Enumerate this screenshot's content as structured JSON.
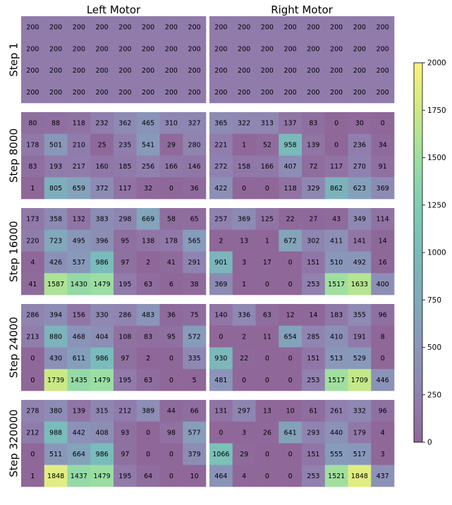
{
  "chart_data": {
    "type": "heatmap",
    "columns": [
      "Left Motor",
      "Right Motor"
    ],
    "rows": [
      "Step 1",
      "Step 8000",
      "Step 16000",
      "Step 24000",
      "Step 320000"
    ],
    "colorbar": {
      "min": 0,
      "max": 2000,
      "ticks": [
        0,
        250,
        500,
        750,
        1000,
        1250,
        1500,
        1750,
        2000
      ],
      "colormap": "viridis",
      "alpha": 0.6
    },
    "grids": [
      {
        "row": "Step 1",
        "left": [
          [
            200,
            200,
            200,
            200,
            200,
            200,
            200,
            200
          ],
          [
            200,
            200,
            200,
            200,
            200,
            200,
            200,
            200
          ],
          [
            200,
            200,
            200,
            200,
            200,
            200,
            200,
            200
          ],
          [
            200,
            200,
            200,
            200,
            200,
            200,
            200,
            200
          ]
        ],
        "right": [
          [
            200,
            200,
            200,
            200,
            200,
            200,
            200,
            200
          ],
          [
            200,
            200,
            200,
            200,
            200,
            200,
            200,
            200
          ],
          [
            200,
            200,
            200,
            200,
            200,
            200,
            200,
            200
          ],
          [
            200,
            200,
            200,
            200,
            200,
            200,
            200,
            200
          ]
        ]
      },
      {
        "row": "Step 8000",
        "left": [
          [
            80,
            88,
            118,
            232,
            362,
            465,
            310,
            327
          ],
          [
            178,
            501,
            210,
            25,
            235,
            541,
            29,
            280
          ],
          [
            83,
            193,
            217,
            160,
            185,
            256,
            166,
            146
          ],
          [
            1,
            805,
            659,
            372,
            117,
            32,
            0,
            36
          ]
        ],
        "right": [
          [
            365,
            322,
            313,
            137,
            83,
            0,
            30,
            0
          ],
          [
            221,
            1,
            52,
            958,
            139,
            0,
            236,
            34
          ],
          [
            272,
            158,
            166,
            407,
            72,
            117,
            270,
            91
          ],
          [
            422,
            0,
            0,
            118,
            329,
            862,
            623,
            369
          ]
        ]
      },
      {
        "row": "Step 16000",
        "left": [
          [
            173,
            358,
            132,
            383,
            298,
            669,
            58,
            65
          ],
          [
            220,
            723,
            495,
            396,
            95,
            138,
            178,
            565
          ],
          [
            4,
            426,
            537,
            986,
            97,
            2,
            41,
            291
          ],
          [
            41,
            1587,
            1430,
            1479,
            195,
            63,
            6,
            38
          ]
        ],
        "right": [
          [
            257,
            369,
            125,
            22,
            27,
            43,
            349,
            114
          ],
          [
            2,
            13,
            1,
            672,
            302,
            411,
            141,
            14
          ],
          [
            901,
            3,
            17,
            0,
            151,
            510,
            492,
            16
          ],
          [
            369,
            1,
            0,
            0,
            253,
            1517,
            1633,
            400
          ]
        ]
      },
      {
        "row": "Step 24000",
        "left": [
          [
            286,
            394,
            156,
            330,
            286,
            483,
            36,
            75
          ],
          [
            213,
            880,
            468,
            404,
            108,
            83,
            95,
            572
          ],
          [
            0,
            430,
            611,
            986,
            97,
            2,
            0,
            335
          ],
          [
            0,
            1739,
            1435,
            1479,
            195,
            63,
            0,
            5
          ]
        ],
        "right": [
          [
            140,
            336,
            63,
            12,
            14,
            183,
            355,
            96
          ],
          [
            0,
            2,
            11,
            654,
            285,
            410,
            191,
            8
          ],
          [
            930,
            22,
            0,
            0,
            151,
            513,
            529,
            0
          ],
          [
            481,
            0,
            0,
            0,
            253,
            1517,
            1709,
            446
          ]
        ]
      },
      {
        "row": "Step 320000",
        "left": [
          [
            278,
            380,
            139,
            315,
            212,
            389,
            44,
            66
          ],
          [
            212,
            988,
            442,
            408,
            93,
            0,
            98,
            577
          ],
          [
            0,
            511,
            664,
            986,
            97,
            0,
            0,
            379
          ],
          [
            1,
            1848,
            1437,
            1479,
            195,
            64,
            0,
            10
          ]
        ],
        "right": [
          [
            131,
            297,
            13,
            10,
            61,
            261,
            332,
            96
          ],
          [
            0,
            3,
            26,
            641,
            293,
            440,
            179,
            4
          ],
          [
            1066,
            29,
            0,
            0,
            151,
            555,
            517,
            3
          ],
          [
            464,
            4,
            0,
            0,
            253,
            1521,
            1848,
            437
          ]
        ]
      }
    ]
  }
}
